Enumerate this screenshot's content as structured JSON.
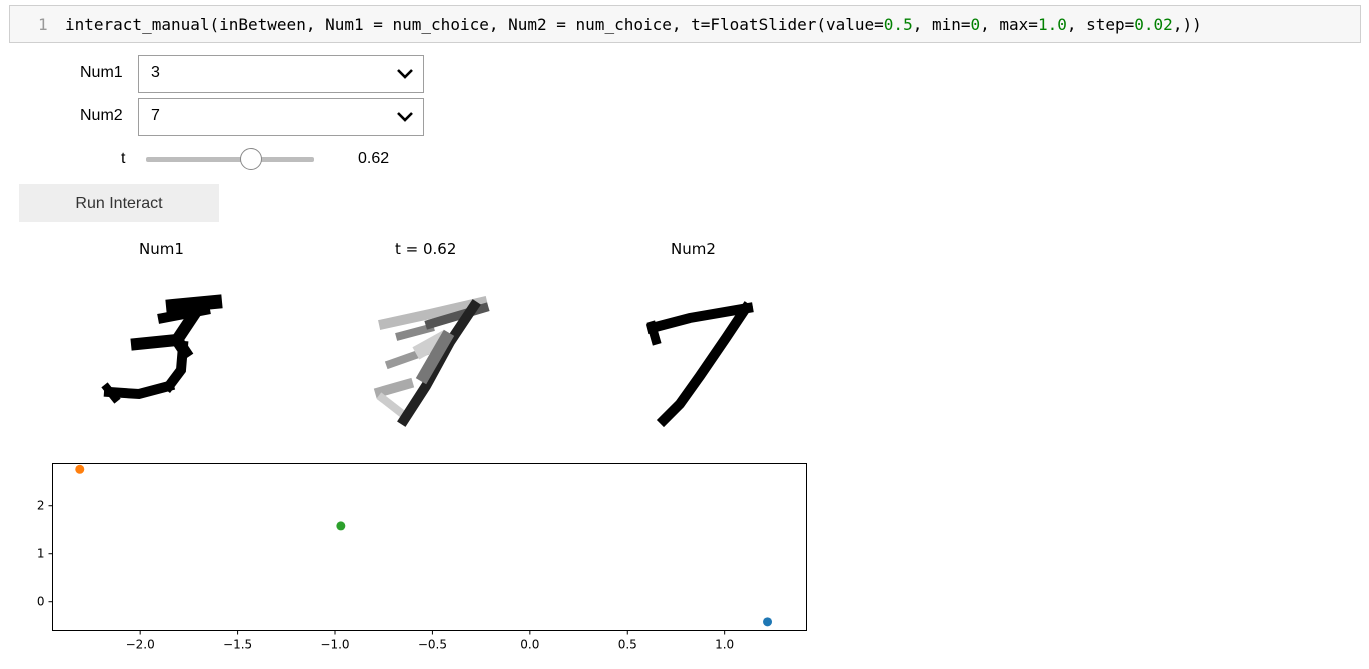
{
  "code_cell": {
    "line_number": "1",
    "code_tokens": [
      {
        "t": "interact_manual(inBetween, Num1 = num_choice, Num2 = num_choice, t=FloatSlider(value=",
        "c": "plain"
      },
      {
        "t": "0.5",
        "c": "num"
      },
      {
        "t": ", min=",
        "c": "plain"
      },
      {
        "t": "0",
        "c": "num"
      },
      {
        "t": ", max=",
        "c": "plain"
      },
      {
        "t": "1.0",
        "c": "num"
      },
      {
        "t": ", step=",
        "c": "plain"
      },
      {
        "t": "0.02",
        "c": "num"
      },
      {
        "t": ",))",
        "c": "plain"
      }
    ]
  },
  "widgets": {
    "num1": {
      "label": "Num1",
      "value": "3"
    },
    "num2": {
      "label": "Num2",
      "value": "7"
    },
    "t": {
      "label": "t",
      "value": 0.62,
      "min": 0,
      "max": 1.0,
      "readout": "0.62"
    },
    "run_button": {
      "label": "Run Interact"
    }
  },
  "images": {
    "num1_title": "Num1",
    "mid_title": "t = 0.62",
    "num2_title": "Num2"
  },
  "chart_data": {
    "type": "scatter",
    "title": "",
    "xlabel": "",
    "ylabel": "",
    "xlim": [
      -2.45,
      1.42
    ],
    "ylim": [
      -0.6,
      2.88
    ],
    "xticks": [
      "−2.0",
      "−1.5",
      "−1.0",
      "−0.5",
      "0.0",
      "0.5",
      "1.0"
    ],
    "xtick_values": [
      -2.0,
      -1.5,
      -1.0,
      -0.5,
      0.0,
      0.5,
      1.0
    ],
    "yticks": [
      "0",
      "1",
      "2"
    ],
    "ytick_values": [
      0,
      1,
      2
    ],
    "grid": false,
    "series": [
      {
        "x": [
          1.22
        ],
        "y": [
          -0.42
        ],
        "color": "#1f77b4"
      },
      {
        "x": [
          -2.31
        ],
        "y": [
          2.76
        ],
        "color": "#ff7f0e"
      },
      {
        "x": [
          -0.97
        ],
        "y": [
          1.58
        ],
        "color": "#2ca02c"
      }
    ]
  }
}
